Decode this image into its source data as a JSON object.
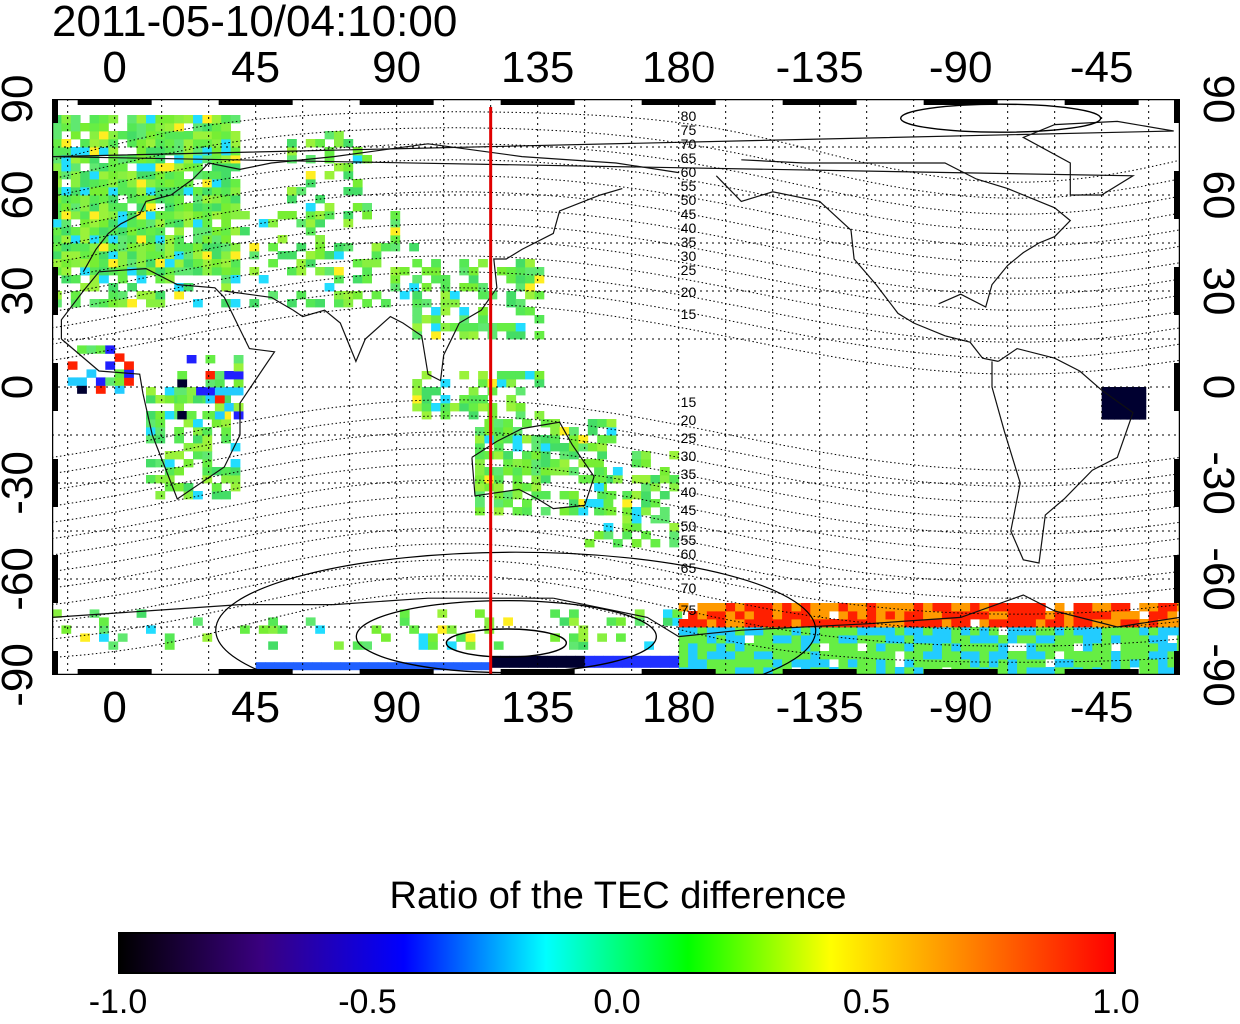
{
  "timestamp": "2011-05-10/04:10:00",
  "x_tick_labels": [
    "0",
    "45",
    "90",
    "135",
    "180",
    "-135",
    "-90",
    "-45"
  ],
  "y_tick_labels_left": [
    "90",
    "60",
    "30",
    "0",
    "-30",
    "-60",
    "-90"
  ],
  "y_tick_labels_right": [
    "90",
    "60",
    "30",
    "0",
    "-30",
    "-60",
    "-90"
  ],
  "geomagnetic_contour_labels_north": [
    "80",
    "75",
    "70",
    "65",
    "60",
    "55",
    "50",
    "45",
    "40",
    "35",
    "30",
    "25",
    "20",
    "15"
  ],
  "geomagnetic_contour_labels_south": [
    "15",
    "20",
    "25",
    "30",
    "35",
    "40",
    "45",
    "50",
    "55",
    "60",
    "65",
    "70",
    "75"
  ],
  "meridian_marker": {
    "longitude_deg": 120,
    "color": "#e00000"
  },
  "colorbar": {
    "title": "Ratio of the TEC difference",
    "min": -1.0,
    "max": 1.0,
    "tick_labels": [
      "-1.0",
      "-0.5",
      "0.0",
      "0.5",
      "1.0"
    ],
    "colors": [
      "#000000",
      "#3a0080",
      "#0000ff",
      "#00ffff",
      "#00ff00",
      "#ffff00",
      "#ff8000",
      "#ff0000"
    ]
  },
  "data_colors": {
    "background_data": "#66ee44",
    "positive_anomaly": "#ff2000",
    "negative_anomaly": "#2020ff",
    "strong_negative": "#000030"
  }
}
